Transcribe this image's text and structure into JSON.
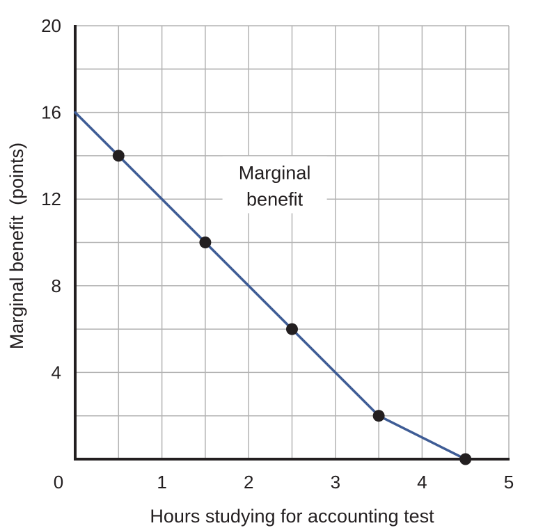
{
  "chart_data": {
    "type": "line",
    "xlabel": "Hours studying for accounting test",
    "ylabel": "Marginal benefit  (points)",
    "xlim": [
      0,
      5
    ],
    "ylim": [
      0,
      20
    ],
    "grid": true,
    "x_ticks": [
      0,
      1,
      2,
      3,
      4,
      5
    ],
    "x_tick_labels": [
      "0",
      "1",
      "2",
      "3",
      "4",
      "5"
    ],
    "y_ticks": [
      4,
      8,
      12,
      16,
      20
    ],
    "y_tick_labels": [
      "4",
      "8",
      "12",
      "16",
      "20"
    ],
    "series": [
      {
        "name": "Marginal benefit",
        "line": [
          {
            "x": 0,
            "y": 16
          },
          {
            "x": 0.5,
            "y": 14
          },
          {
            "x": 1.5,
            "y": 10
          },
          {
            "x": 2.5,
            "y": 6
          },
          {
            "x": 3.5,
            "y": 2
          },
          {
            "x": 4.5,
            "y": 0
          }
        ],
        "markers": [
          {
            "x": 0.5,
            "y": 14
          },
          {
            "x": 1.5,
            "y": 10
          },
          {
            "x": 2.5,
            "y": 6
          },
          {
            "x": 3.5,
            "y": 2
          },
          {
            "x": 4.5,
            "y": 0
          }
        ],
        "color": "#3e5c95"
      }
    ],
    "annotations": [
      {
        "lines": [
          "Marginal",
          "benefit"
        ],
        "x": 2.3,
        "y": 12.6
      }
    ],
    "colors": {
      "grid": "#b3b3b3",
      "axis": "#231f20",
      "marker": "#231f20"
    }
  }
}
